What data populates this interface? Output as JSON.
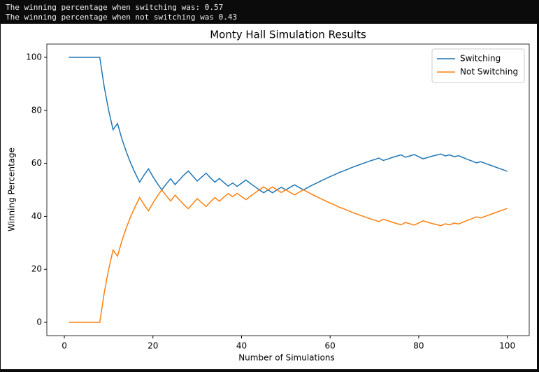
{
  "output": [
    "The winning percentage when switching was: 0.57",
    "The winning percentage when not switching was 0.43"
  ],
  "chart_data": {
    "type": "line",
    "title": "Monty Hall Simulation Results",
    "x_label": "Number of Simulations",
    "y_label": "Winning Percentage",
    "x": [
      1,
      2,
      3,
      4,
      5,
      6,
      7,
      8,
      9,
      10,
      11,
      12,
      13,
      14,
      15,
      16,
      17,
      18,
      19,
      20,
      21,
      22,
      23,
      24,
      25,
      26,
      27,
      28,
      29,
      30,
      31,
      32,
      33,
      34,
      35,
      36,
      37,
      38,
      39,
      40,
      41,
      42,
      43,
      44,
      45,
      46,
      47,
      48,
      49,
      50,
      51,
      52,
      53,
      54,
      55,
      56,
      57,
      58,
      59,
      60,
      61,
      62,
      63,
      64,
      65,
      66,
      67,
      68,
      69,
      70,
      71,
      72,
      73,
      74,
      75,
      76,
      77,
      78,
      79,
      80,
      81,
      82,
      83,
      84,
      85,
      86,
      87,
      88,
      89,
      90,
      91,
      92,
      93,
      94,
      95,
      96,
      97,
      98,
      99,
      100
    ],
    "series": [
      {
        "name": "Switching",
        "color": "#1f77b4",
        "values": [
          100,
          100,
          100,
          100,
          100,
          100,
          100,
          100,
          88.9,
          80,
          72.7,
          75,
          69.2,
          64.3,
          60,
          56.3,
          52.9,
          55.6,
          57.9,
          55,
          52.4,
          50,
          52.2,
          54.2,
          52,
          53.8,
          55.6,
          57.1,
          55.2,
          53.3,
          54.8,
          56.3,
          54.5,
          52.9,
          54.3,
          52.8,
          51.4,
          52.6,
          51.3,
          52.5,
          53.7,
          52.4,
          51.2,
          50,
          48.9,
          50,
          48.9,
          50,
          51,
          50,
          51,
          51.9,
          50.9,
          50,
          50.9,
          51.8,
          52.6,
          53.4,
          54.2,
          55,
          55.7,
          56.5,
          57.1,
          57.8,
          58.5,
          59.1,
          59.7,
          60.3,
          60.9,
          61.4,
          62,
          61.1,
          61.6,
          62.2,
          62.7,
          63.2,
          62.3,
          62.8,
          63.3,
          62.5,
          61.7,
          62.2,
          62.7,
          63.1,
          63.5,
          62.8,
          63.2,
          62.5,
          62.9,
          62.2,
          61.5,
          60.9,
          60.2,
          60.6,
          60,
          59.4,
          58.8,
          58.2,
          57.6,
          57
        ]
      },
      {
        "name": "Not Switching",
        "color": "#ff7f0e",
        "values": [
          0,
          0,
          0,
          0,
          0,
          0,
          0,
          0,
          11.1,
          20,
          27.3,
          25,
          30.8,
          35.7,
          40,
          43.7,
          47.1,
          44.4,
          42.1,
          45,
          47.6,
          50,
          47.8,
          45.8,
          48,
          46.2,
          44.4,
          42.9,
          44.8,
          46.7,
          45.2,
          43.7,
          45.5,
          47.1,
          45.7,
          47.2,
          48.6,
          47.4,
          48.7,
          47.5,
          46.3,
          47.6,
          48.8,
          50,
          51.1,
          50,
          51.1,
          50,
          49,
          50,
          49,
          48.1,
          49.1,
          50,
          49.1,
          48.2,
          47.4,
          46.6,
          45.8,
          45,
          44.3,
          43.5,
          42.9,
          42.2,
          41.5,
          40.9,
          40.3,
          39.7,
          39.1,
          38.6,
          38,
          38.9,
          38.4,
          37.8,
          37.3,
          36.8,
          37.7,
          37.2,
          36.7,
          37.5,
          38.3,
          37.8,
          37.3,
          36.9,
          36.5,
          37.2,
          36.8,
          37.5,
          37.1,
          37.8,
          38.5,
          39.1,
          39.8,
          39.4,
          40,
          40.6,
          41.2,
          41.8,
          42.4,
          43
        ]
      }
    ],
    "xlim": [
      -3.95,
      104.95
    ],
    "ylim": [
      -5,
      105
    ],
    "xticks": [
      0,
      20,
      40,
      60,
      80,
      100
    ],
    "yticks": [
      0,
      20,
      40,
      60,
      80,
      100
    ],
    "grid": false,
    "legend": "upper right"
  }
}
